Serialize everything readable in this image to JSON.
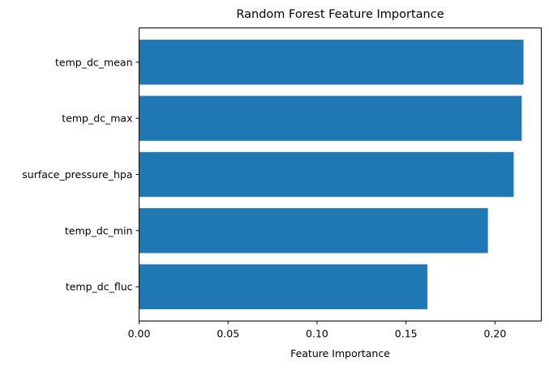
{
  "chart_data": {
    "type": "bar",
    "orientation": "horizontal",
    "title": "Random Forest Feature Importance",
    "xlabel": "Feature Importance",
    "ylabel": "",
    "categories": [
      "temp_dc_mean",
      "temp_dc_max",
      "surface_pressure_hpa",
      "temp_dc_min",
      "temp_dc_fluc"
    ],
    "values": [
      0.216,
      0.215,
      0.2105,
      0.196,
      0.162
    ],
    "xlim": [
      0,
      0.226
    ],
    "xticks": [
      0.0,
      0.05,
      0.1,
      0.15,
      0.2
    ],
    "xtick_labels": [
      "0.00",
      "0.05",
      "0.10",
      "0.15",
      "0.20"
    ],
    "grid": false,
    "bar_color": "#1f77b4"
  }
}
